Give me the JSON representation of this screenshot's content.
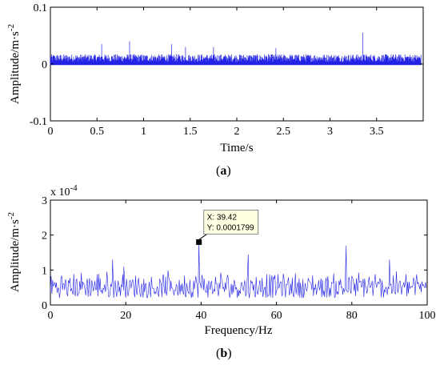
{
  "colors": {
    "series": "#2323e6",
    "axis": "#000000",
    "datatip_bg": "#ffffe1"
  },
  "chart_data": [
    {
      "type": "line",
      "caption_letter": "a",
      "xlabel": "Time/s",
      "ylabel_base": "Amplitude/m·s",
      "ylabel_exp": "-2",
      "xlim": [
        0,
        4
      ],
      "ylim": [
        -0.1,
        0.1
      ],
      "xticks": [
        "0",
        "0.5",
        "1",
        "1.5",
        "2",
        "2.5",
        "3",
        "3.5"
      ],
      "yticks": [
        "-0.1",
        "0",
        "0.1"
      ],
      "xtick_values": [
        0,
        0.5,
        1,
        1.5,
        2,
        2.5,
        3,
        3.5
      ],
      "ytick_values": [
        -0.1,
        0,
        0.1
      ],
      "series": [
        {
          "x_range": [
            0,
            3.98
          ],
          "baseline": 0,
          "typical_peak": 0.015,
          "max_value": 0.055,
          "peaks": [
            {
              "x": 0.55,
              "y": 0.035
            },
            {
              "x": 0.85,
              "y": 0.04
            },
            {
              "x": 1.3,
              "y": 0.035
            },
            {
              "x": 1.45,
              "y": 0.03
            },
            {
              "x": 1.75,
              "y": 0.03
            },
            {
              "x": 2.42,
              "y": 0.028
            },
            {
              "x": 3.35,
              "y": 0.055
            }
          ]
        }
      ]
    },
    {
      "type": "line",
      "caption_letter": "b",
      "xlabel": "Frequency/Hz",
      "ylabel_base": "Amplitude/m·s",
      "ylabel_exp": "-2",
      "y_multiplier_base": "x 10",
      "y_multiplier_exp": "-4",
      "xlim": [
        0,
        100
      ],
      "ylim": [
        0,
        3
      ],
      "xticks": [
        "0",
        "20",
        "40",
        "60",
        "80",
        "100"
      ],
      "yticks": [
        "0",
        "1",
        "2",
        "3"
      ],
      "xtick_values": [
        0,
        20,
        40,
        60,
        80,
        100
      ],
      "ytick_values": [
        0,
        1,
        2,
        3
      ],
      "series": [
        {
          "x_range": [
            0,
            100
          ],
          "typical_range": [
            0.2,
            1.0
          ],
          "peaks": [
            {
              "x": 16.5,
              "y": 1.3
            },
            {
              "x": 19.5,
              "y": 1.1
            },
            {
              "x": 39.42,
              "y": 1.799
            },
            {
              "x": 52.5,
              "y": 1.45
            },
            {
              "x": 78.5,
              "y": 1.7
            },
            {
              "x": 90.0,
              "y": 1.3
            }
          ]
        }
      ],
      "datatip": {
        "x_text": "X: 39.42",
        "y_text": "Y: 0.0001799",
        "x": 39.42,
        "y": 1.799
      }
    }
  ]
}
